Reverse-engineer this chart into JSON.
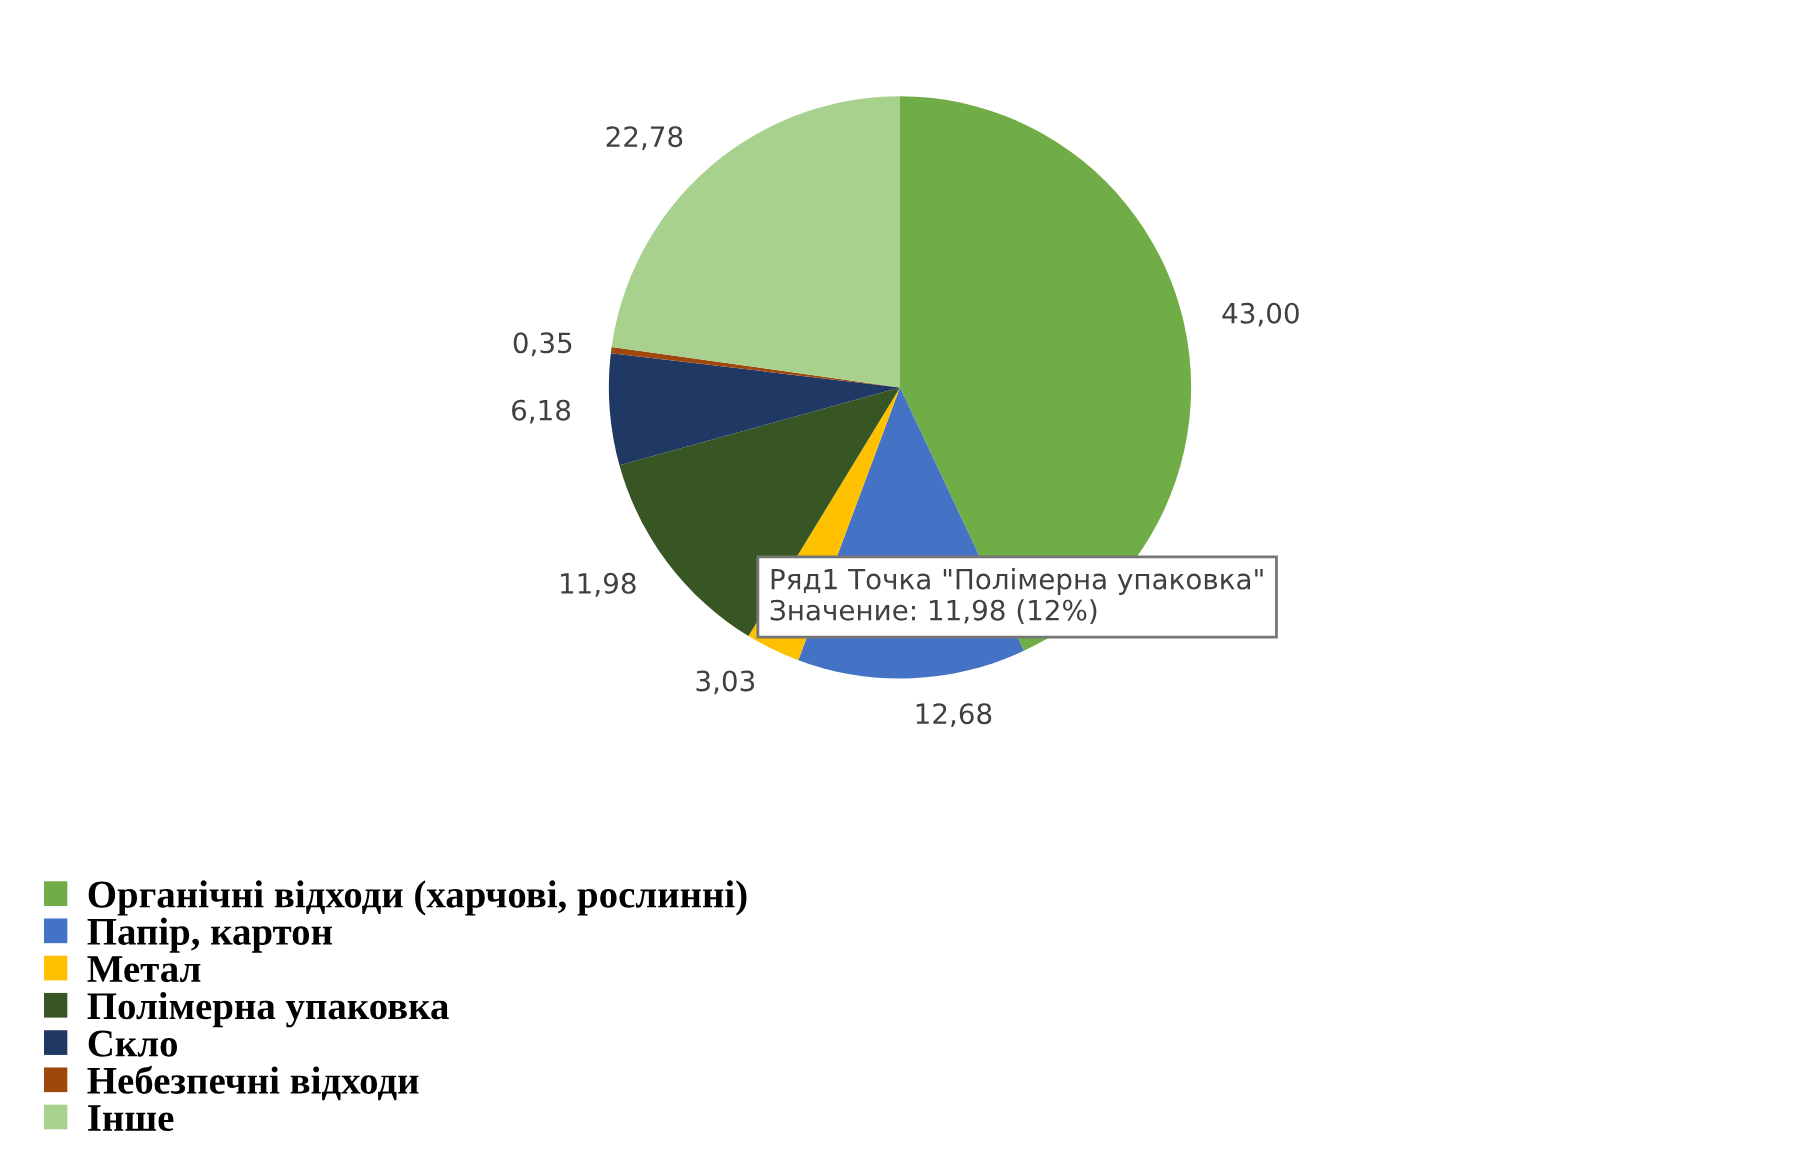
{
  "chart_data": {
    "type": "pie",
    "categories": [
      "Органічні відходи (харчові, рослинні)",
      "Папір, картон",
      "Метал",
      "Полімерна упаковка",
      "Скло",
      "Небезпечні відходи",
      "Інше"
    ],
    "values": [
      43.0,
      12.68,
      3.03,
      11.98,
      6.18,
      0.35,
      22.78
    ],
    "value_labels": [
      "43,00",
      "12,68",
      "3,03",
      "11,98",
      "6,18",
      "0,35",
      "22,78"
    ],
    "colors": [
      "#70ad47",
      "#4472c4",
      "#ffc000",
      "#375623",
      "#203864",
      "#9e480e",
      "#a9d18e"
    ],
    "annotations": [
      "Ряд1 Точка \"Полімерна упаковка\"\nЗначение: 11,98 (12%)"
    ],
    "legend": "bottom left"
  }
}
